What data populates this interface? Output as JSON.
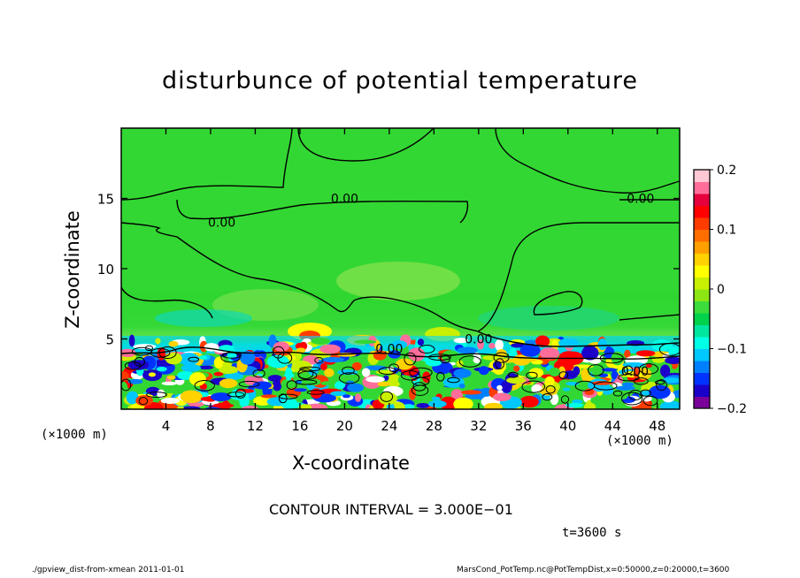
{
  "chart_data": {
    "type": "heatmap",
    "title": "disturbunce of potential temperature",
    "xlabel": "X-coordinate",
    "ylabel": "Z-coordinate",
    "x_unit_label": "(×1000 m)",
    "xlim": [
      0,
      50
    ],
    "ylim": [
      0,
      20
    ],
    "x_ticks": [
      4,
      8,
      12,
      16,
      20,
      24,
      28,
      32,
      36,
      40,
      44,
      48
    ],
    "y_ticks": [
      5,
      10,
      15
    ],
    "colorbar": {
      "range": [
        -0.2,
        0.2
      ],
      "tick_labels": [
        "0.2",
        "0.1",
        "0",
        "−0.1",
        "−0.2"
      ],
      "tick_values": [
        0.2,
        0.1,
        0,
        -0.1,
        -0.2
      ],
      "colors": [
        "#7a0099",
        "#1a00c8",
        "#0033ff",
        "#0080ff",
        "#00c8ff",
        "#00ffe6",
        "#00e6a0",
        "#00d24b",
        "#3cdc3c",
        "#8ce614",
        "#c8f000",
        "#ffff00",
        "#ffd200",
        "#ffa000",
        "#ff6e00",
        "#ff3c00",
        "#ff0000",
        "#e6003c",
        "#ff6e9b",
        "#ffc8d2"
      ]
    },
    "contour_labels": [
      {
        "text": "0.00",
        "x": 20,
        "z": 15
      },
      {
        "text": "0.00",
        "x": 46.5,
        "z": 15
      },
      {
        "text": "0.00",
        "x": 9,
        "z": 13.3
      },
      {
        "text": "0.00",
        "x": 32,
        "z": 5
      },
      {
        "text": "0.00",
        "x": 24,
        "z": 4.3
      },
      {
        "text": "0.00",
        "x": 46,
        "z": 2.7
      }
    ],
    "contour_interval_text": "CONTOUR INTERVAL = 3.000E−01",
    "time_text": "t=3600 s"
  },
  "footer": {
    "left": "./gpview_dist-from-xmean  2011-01-01",
    "right": "MarsCond_PotTemp.nc@PotTempDist,x=0:50000,z=0:20000,t=3600"
  }
}
